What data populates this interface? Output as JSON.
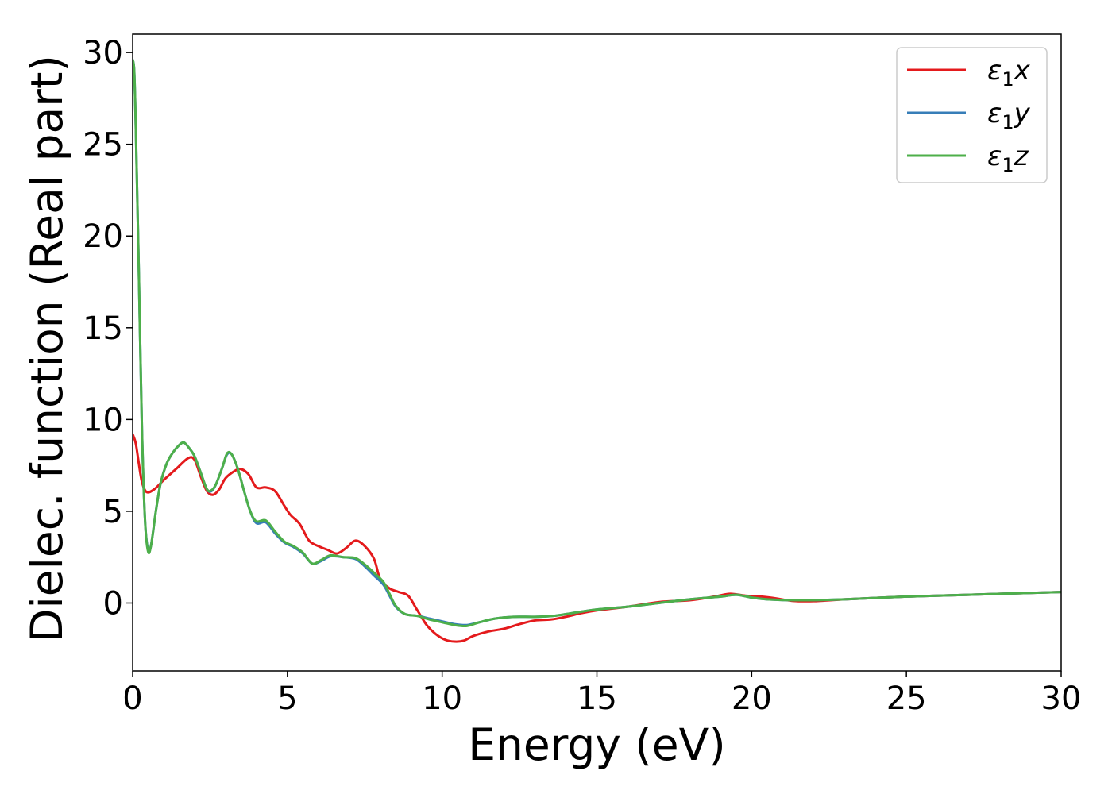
{
  "chart_data": {
    "type": "line",
    "xlabel": "Energy (eV)",
    "ylabel": "Dielec. function (Real part)",
    "xlim": [
      0,
      30
    ],
    "ylim": [
      -3.7,
      31
    ],
    "xticks": [
      "0",
      "5",
      "10",
      "15",
      "20",
      "25",
      "30"
    ],
    "yticks": [
      "0",
      "5",
      "10",
      "15",
      "20",
      "25",
      "30"
    ],
    "grid": false,
    "legend": "top-right",
    "series": [
      {
        "name": "ε1x",
        "legend": {
          "symbol": "ε",
          "sub": "1",
          "axis": "x"
        },
        "color": "#e41a1c",
        "points": [
          [
            0,
            9.2
          ],
          [
            0.1,
            8.7
          ],
          [
            0.2,
            7.6
          ],
          [
            0.3,
            6.6
          ],
          [
            0.45,
            6.05
          ],
          [
            0.7,
            6.2
          ],
          [
            1.0,
            6.7
          ],
          [
            1.4,
            7.3
          ],
          [
            1.8,
            7.9
          ],
          [
            2.0,
            7.8
          ],
          [
            2.2,
            6.9
          ],
          [
            2.4,
            6.1
          ],
          [
            2.6,
            5.9
          ],
          [
            2.8,
            6.2
          ],
          [
            3.0,
            6.8
          ],
          [
            3.3,
            7.2
          ],
          [
            3.5,
            7.3
          ],
          [
            3.75,
            7.0
          ],
          [
            4.0,
            6.3
          ],
          [
            4.3,
            6.3
          ],
          [
            4.6,
            6.1
          ],
          [
            4.9,
            5.3
          ],
          [
            5.1,
            4.8
          ],
          [
            5.4,
            4.3
          ],
          [
            5.7,
            3.4
          ],
          [
            6.0,
            3.1
          ],
          [
            6.3,
            2.9
          ],
          [
            6.6,
            2.7
          ],
          [
            6.9,
            3.0
          ],
          [
            7.2,
            3.4
          ],
          [
            7.5,
            3.1
          ],
          [
            7.8,
            2.4
          ],
          [
            8.0,
            1.3
          ],
          [
            8.3,
            0.8
          ],
          [
            8.6,
            0.6
          ],
          [
            8.9,
            0.4
          ],
          [
            9.2,
            -0.4
          ],
          [
            9.5,
            -1.2
          ],
          [
            9.8,
            -1.7
          ],
          [
            10.1,
            -2.0
          ],
          [
            10.4,
            -2.1
          ],
          [
            10.7,
            -2.05
          ],
          [
            11.0,
            -1.8
          ],
          [
            11.5,
            -1.55
          ],
          [
            12.0,
            -1.4
          ],
          [
            12.5,
            -1.15
          ],
          [
            13.0,
            -0.95
          ],
          [
            13.5,
            -0.9
          ],
          [
            14.0,
            -0.75
          ],
          [
            14.5,
            -0.55
          ],
          [
            15.0,
            -0.4
          ],
          [
            16.0,
            -0.2
          ],
          [
            17.0,
            0.05
          ],
          [
            18.0,
            0.15
          ],
          [
            18.8,
            0.35
          ],
          [
            19.3,
            0.5
          ],
          [
            19.8,
            0.4
          ],
          [
            20.3,
            0.35
          ],
          [
            20.8,
            0.25
          ],
          [
            21.3,
            0.12
          ],
          [
            22.0,
            0.1
          ],
          [
            23.0,
            0.2
          ],
          [
            25.0,
            0.35
          ],
          [
            27.0,
            0.45
          ],
          [
            30.0,
            0.6
          ]
        ]
      },
      {
        "name": "ε1y",
        "legend": {
          "symbol": "ε",
          "sub": "1",
          "axis": "y"
        },
        "color": "#377eb8",
        "points": [
          [
            0,
            29.6
          ],
          [
            0.05,
            29.0
          ],
          [
            0.1,
            26.0
          ],
          [
            0.2,
            18.0
          ],
          [
            0.3,
            9.5
          ],
          [
            0.4,
            4.5
          ],
          [
            0.5,
            2.9
          ],
          [
            0.6,
            3.2
          ],
          [
            0.75,
            5.0
          ],
          [
            0.9,
            6.5
          ],
          [
            1.1,
            7.6
          ],
          [
            1.3,
            8.2
          ],
          [
            1.5,
            8.6
          ],
          [
            1.65,
            8.75
          ],
          [
            1.8,
            8.5
          ],
          [
            2.0,
            8.0
          ],
          [
            2.2,
            7.1
          ],
          [
            2.4,
            6.2
          ],
          [
            2.55,
            6.1
          ],
          [
            2.7,
            6.5
          ],
          [
            2.9,
            7.4
          ],
          [
            3.05,
            8.1
          ],
          [
            3.2,
            8.1
          ],
          [
            3.4,
            7.3
          ],
          [
            3.6,
            6.1
          ],
          [
            3.8,
            5.0
          ],
          [
            4.0,
            4.35
          ],
          [
            4.3,
            4.4
          ],
          [
            4.6,
            3.8
          ],
          [
            4.9,
            3.3
          ],
          [
            5.2,
            3.05
          ],
          [
            5.5,
            2.7
          ],
          [
            5.8,
            2.15
          ],
          [
            6.1,
            2.3
          ],
          [
            6.4,
            2.55
          ],
          [
            6.8,
            2.5
          ],
          [
            7.2,
            2.4
          ],
          [
            7.5,
            2.0
          ],
          [
            7.8,
            1.5
          ],
          [
            8.1,
            1.0
          ],
          [
            8.3,
            0.4
          ],
          [
            8.5,
            -0.2
          ],
          [
            8.8,
            -0.6
          ],
          [
            9.2,
            -0.7
          ],
          [
            9.6,
            -0.85
          ],
          [
            10.0,
            -1.0
          ],
          [
            10.4,
            -1.15
          ],
          [
            10.8,
            -1.2
          ],
          [
            11.2,
            -1.05
          ],
          [
            11.7,
            -0.85
          ],
          [
            12.3,
            -0.75
          ],
          [
            13.0,
            -0.75
          ],
          [
            13.6,
            -0.7
          ],
          [
            14.2,
            -0.55
          ],
          [
            15.0,
            -0.35
          ],
          [
            16.0,
            -0.2
          ],
          [
            17.0,
            0.0
          ],
          [
            18.0,
            0.2
          ],
          [
            19.0,
            0.35
          ],
          [
            19.5,
            0.45
          ],
          [
            20.0,
            0.3
          ],
          [
            20.5,
            0.2
          ],
          [
            21.5,
            0.15
          ],
          [
            23.0,
            0.2
          ],
          [
            25.0,
            0.35
          ],
          [
            27.0,
            0.45
          ],
          [
            30.0,
            0.6
          ]
        ]
      },
      {
        "name": "ε1z",
        "legend": {
          "symbol": "ε",
          "sub": "1",
          "axis": "z"
        },
        "color": "#4daf4a",
        "points": [
          [
            0,
            29.6
          ],
          [
            0.05,
            29.0
          ],
          [
            0.1,
            26.0
          ],
          [
            0.2,
            18.0
          ],
          [
            0.3,
            9.5
          ],
          [
            0.4,
            4.5
          ],
          [
            0.5,
            2.8
          ],
          [
            0.6,
            3.2
          ],
          [
            0.75,
            5.0
          ],
          [
            0.9,
            6.5
          ],
          [
            1.1,
            7.6
          ],
          [
            1.3,
            8.2
          ],
          [
            1.5,
            8.6
          ],
          [
            1.65,
            8.75
          ],
          [
            1.8,
            8.5
          ],
          [
            2.0,
            8.0
          ],
          [
            2.2,
            7.1
          ],
          [
            2.4,
            6.2
          ],
          [
            2.55,
            6.15
          ],
          [
            2.7,
            6.5
          ],
          [
            2.9,
            7.4
          ],
          [
            3.05,
            8.15
          ],
          [
            3.2,
            8.1
          ],
          [
            3.4,
            7.3
          ],
          [
            3.6,
            6.1
          ],
          [
            3.8,
            5.0
          ],
          [
            4.0,
            4.45
          ],
          [
            4.3,
            4.5
          ],
          [
            4.6,
            3.9
          ],
          [
            4.9,
            3.35
          ],
          [
            5.2,
            3.1
          ],
          [
            5.5,
            2.75
          ],
          [
            5.8,
            2.15
          ],
          [
            6.1,
            2.35
          ],
          [
            6.4,
            2.6
          ],
          [
            6.8,
            2.5
          ],
          [
            7.2,
            2.45
          ],
          [
            7.5,
            2.1
          ],
          [
            7.8,
            1.65
          ],
          [
            8.1,
            1.15
          ],
          [
            8.3,
            0.5
          ],
          [
            8.5,
            -0.15
          ],
          [
            8.8,
            -0.6
          ],
          [
            9.2,
            -0.7
          ],
          [
            9.6,
            -0.9
          ],
          [
            10.0,
            -1.05
          ],
          [
            10.4,
            -1.2
          ],
          [
            10.8,
            -1.25
          ],
          [
            11.2,
            -1.05
          ],
          [
            11.7,
            -0.85
          ],
          [
            12.3,
            -0.75
          ],
          [
            13.0,
            -0.75
          ],
          [
            13.6,
            -0.7
          ],
          [
            14.2,
            -0.55
          ],
          [
            15.0,
            -0.35
          ],
          [
            16.0,
            -0.2
          ],
          [
            17.0,
            0.0
          ],
          [
            18.0,
            0.2
          ],
          [
            19.0,
            0.35
          ],
          [
            19.5,
            0.45
          ],
          [
            20.0,
            0.3
          ],
          [
            20.5,
            0.2
          ],
          [
            21.5,
            0.15
          ],
          [
            23.0,
            0.2
          ],
          [
            25.0,
            0.35
          ],
          [
            27.0,
            0.45
          ],
          [
            30.0,
            0.6
          ]
        ]
      }
    ]
  }
}
